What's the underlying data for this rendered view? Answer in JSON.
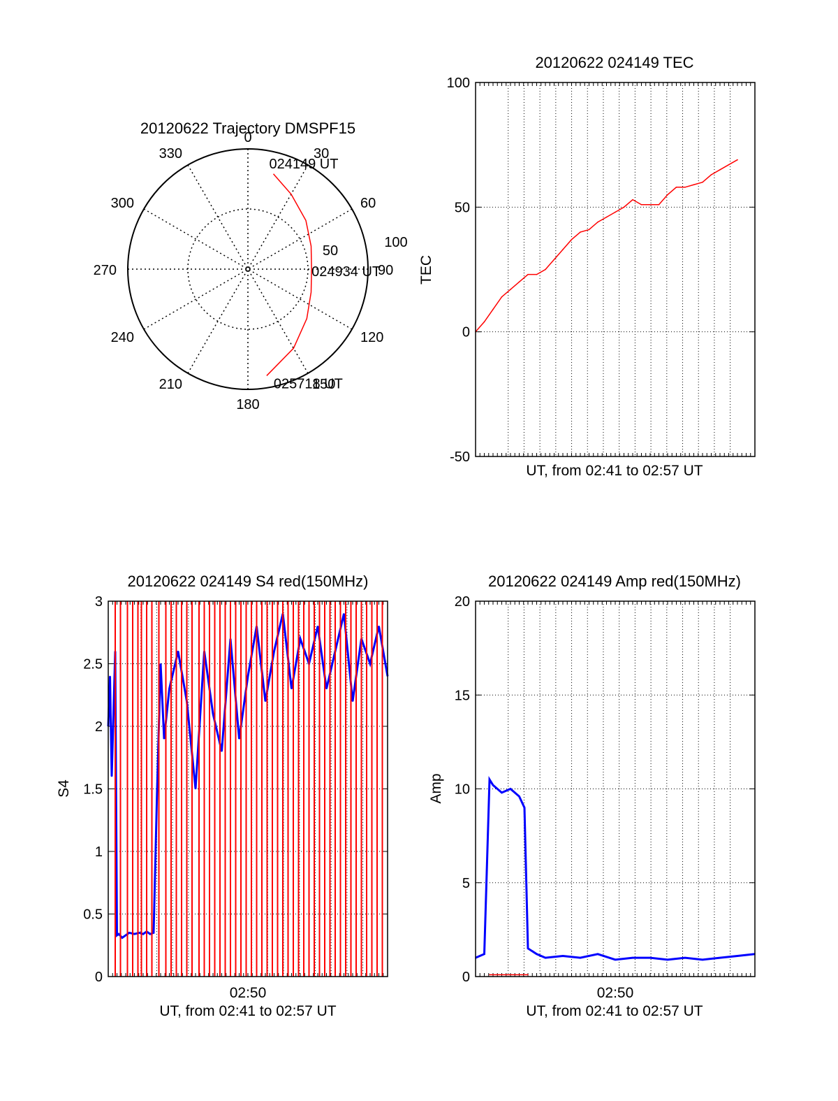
{
  "chart_data": [
    {
      "type": "polar",
      "title": "20120622 Trajectory DMSPF15",
      "angle_labels": [
        "0",
        "30",
        "60",
        "90",
        "120",
        "150",
        "180",
        "210",
        "240",
        "270",
        "300",
        "330"
      ],
      "radius_labels": [
        "50",
        "100"
      ],
      "rlim": [
        0,
        100
      ],
      "grid": true,
      "trajectory": {
        "color": "#ff0000",
        "points": [
          {
            "az": 15,
            "r": 82
          },
          {
            "az": 30,
            "r": 72
          },
          {
            "az": 50,
            "r": 63
          },
          {
            "az": 70,
            "r": 56
          },
          {
            "az": 90,
            "r": 53
          },
          {
            "az": 110,
            "r": 56
          },
          {
            "az": 130,
            "r": 64
          },
          {
            "az": 150,
            "r": 76
          },
          {
            "az": 170,
            "r": 90
          }
        ],
        "labels": [
          {
            "text": "024149 UT",
            "point": 0
          },
          {
            "text": "024934 UT",
            "point": 4
          },
          {
            "text": "025718 UT",
            "point": 8
          }
        ]
      }
    },
    {
      "type": "line",
      "title": "20120622 024149 TEC",
      "xlabel": "UT, from 02:41 to 02:57 UT",
      "ylabel": "TEC",
      "ylim": [
        -50,
        100
      ],
      "yticks": [
        "-50",
        "0",
        "50",
        "100"
      ],
      "xlim": [
        0,
        16
      ],
      "grid": true,
      "series": [
        {
          "color": "#ff0000",
          "x": [
            0.0,
            0.5,
            1.0,
            1.5,
            2.0,
            2.5,
            3.0,
            3.5,
            4.0,
            4.5,
            5.0,
            5.5,
            6.0,
            6.5,
            7.0,
            7.5,
            8.0,
            8.5,
            9.0,
            9.5,
            10.0,
            10.5,
            11.0,
            11.5,
            12.0,
            12.5,
            13.0,
            13.5,
            14.0,
            14.5,
            15.0
          ],
          "values": [
            0,
            4,
            9,
            14,
            17,
            20,
            23,
            23,
            25,
            29,
            33,
            37,
            40,
            41,
            44,
            46,
            48,
            50,
            53,
            51,
            51,
            51,
            55,
            58,
            58,
            59,
            60,
            63,
            65,
            67,
            69
          ]
        }
      ]
    },
    {
      "type": "line",
      "title": "20120622 024149 S4 red(150MHz)",
      "xlabel": "UT, from 02:41 to 02:57 UT",
      "ylabel": "S4",
      "ylim": [
        0,
        3
      ],
      "yticks": [
        "0",
        "0.5",
        "1",
        "1.5",
        "2",
        "2.5",
        "3"
      ],
      "xtick_label": "02:50",
      "grid": true,
      "series": [
        {
          "color": "#0000ff",
          "x": [
            0.0,
            0.1,
            0.2,
            0.4,
            0.5,
            0.6,
            0.8,
            1.0,
            1.2,
            1.5,
            1.8,
            2.0,
            2.2,
            2.4,
            2.6,
            2.8,
            3.0,
            3.2,
            3.5,
            4.0,
            4.5,
            5.0,
            5.5,
            6.0,
            6.5,
            7.0,
            7.5,
            8.0,
            8.5,
            9.0,
            9.5,
            10.0,
            10.5,
            11.0,
            11.5,
            12.0,
            12.5,
            13.0,
            13.5,
            14.0,
            14.5,
            15.0,
            15.5,
            16.0
          ],
          "values": [
            2.0,
            2.4,
            1.6,
            2.6,
            0.33,
            0.34,
            0.31,
            0.33,
            0.35,
            0.34,
            0.35,
            0.34,
            0.36,
            0.34,
            0.35,
            1.5,
            2.5,
            1.9,
            2.3,
            2.6,
            2.2,
            1.5,
            2.6,
            2.1,
            1.8,
            2.7,
            1.9,
            2.4,
            2.8,
            2.2,
            2.6,
            2.9,
            2.3,
            2.7,
            2.5,
            2.8,
            2.3,
            2.6,
            2.9,
            2.2,
            2.7,
            2.5,
            2.8,
            2.4
          ]
        },
        {
          "color": "#ff0000",
          "style": "dropouts",
          "x": [
            0.4,
            0.7,
            1.1,
            1.4,
            1.7,
            1.9,
            2.2,
            2.5,
            2.9,
            3.3,
            3.6,
            3.9,
            4.2,
            4.5,
            4.8,
            5.2,
            5.5,
            5.8,
            6.1,
            6.4,
            6.7,
            7.0,
            7.3,
            7.6,
            7.9,
            8.2,
            8.5,
            8.8,
            9.1,
            9.4,
            9.7,
            10.0,
            10.3,
            10.6,
            10.9,
            11.2,
            11.5,
            11.8,
            12.1,
            12.4,
            12.7,
            13.0,
            13.3,
            13.6,
            13.9,
            14.2,
            14.5,
            14.8,
            15.1,
            15.4,
            15.7
          ],
          "values": [
            3,
            3,
            3,
            3,
            3,
            3,
            3,
            3,
            3,
            3,
            3,
            3,
            3,
            3,
            3,
            3,
            3,
            3,
            3,
            3,
            3,
            3,
            3,
            3,
            3,
            3,
            3,
            3,
            3,
            3,
            3,
            3,
            3,
            3,
            3,
            3,
            3,
            3,
            3,
            3,
            3,
            3,
            3,
            3,
            3,
            3,
            3,
            3,
            3,
            3,
            3
          ]
        }
      ]
    },
    {
      "type": "line",
      "title": "20120622 024149 Amp red(150MHz)",
      "xlabel": "UT, from 02:41 to 02:57 UT",
      "ylabel": "Amp",
      "ylim": [
        0,
        20
      ],
      "yticks": [
        "0",
        "5",
        "10",
        "15",
        "20"
      ],
      "xtick_label": "02:50",
      "grid": true,
      "series": [
        {
          "color": "#0000ff",
          "x": [
            0.0,
            0.5,
            0.8,
            1.0,
            1.5,
            2.0,
            2.5,
            2.8,
            3.0,
            3.5,
            4.0,
            5.0,
            6.0,
            7.0,
            8.0,
            9.0,
            10.0,
            11.0,
            12.0,
            13.0,
            14.0,
            15.0,
            16.0
          ],
          "values": [
            1.0,
            1.2,
            10.5,
            10.2,
            9.8,
            10.0,
            9.6,
            9.0,
            1.5,
            1.2,
            1.0,
            1.1,
            1.0,
            1.2,
            0.9,
            1.0,
            1.0,
            0.9,
            1.0,
            0.9,
            1.0,
            1.1,
            1.2
          ]
        },
        {
          "color": "#ff0000",
          "x": [
            0.8,
            3.0
          ],
          "values": [
            0.1,
            0.1
          ]
        }
      ]
    }
  ]
}
